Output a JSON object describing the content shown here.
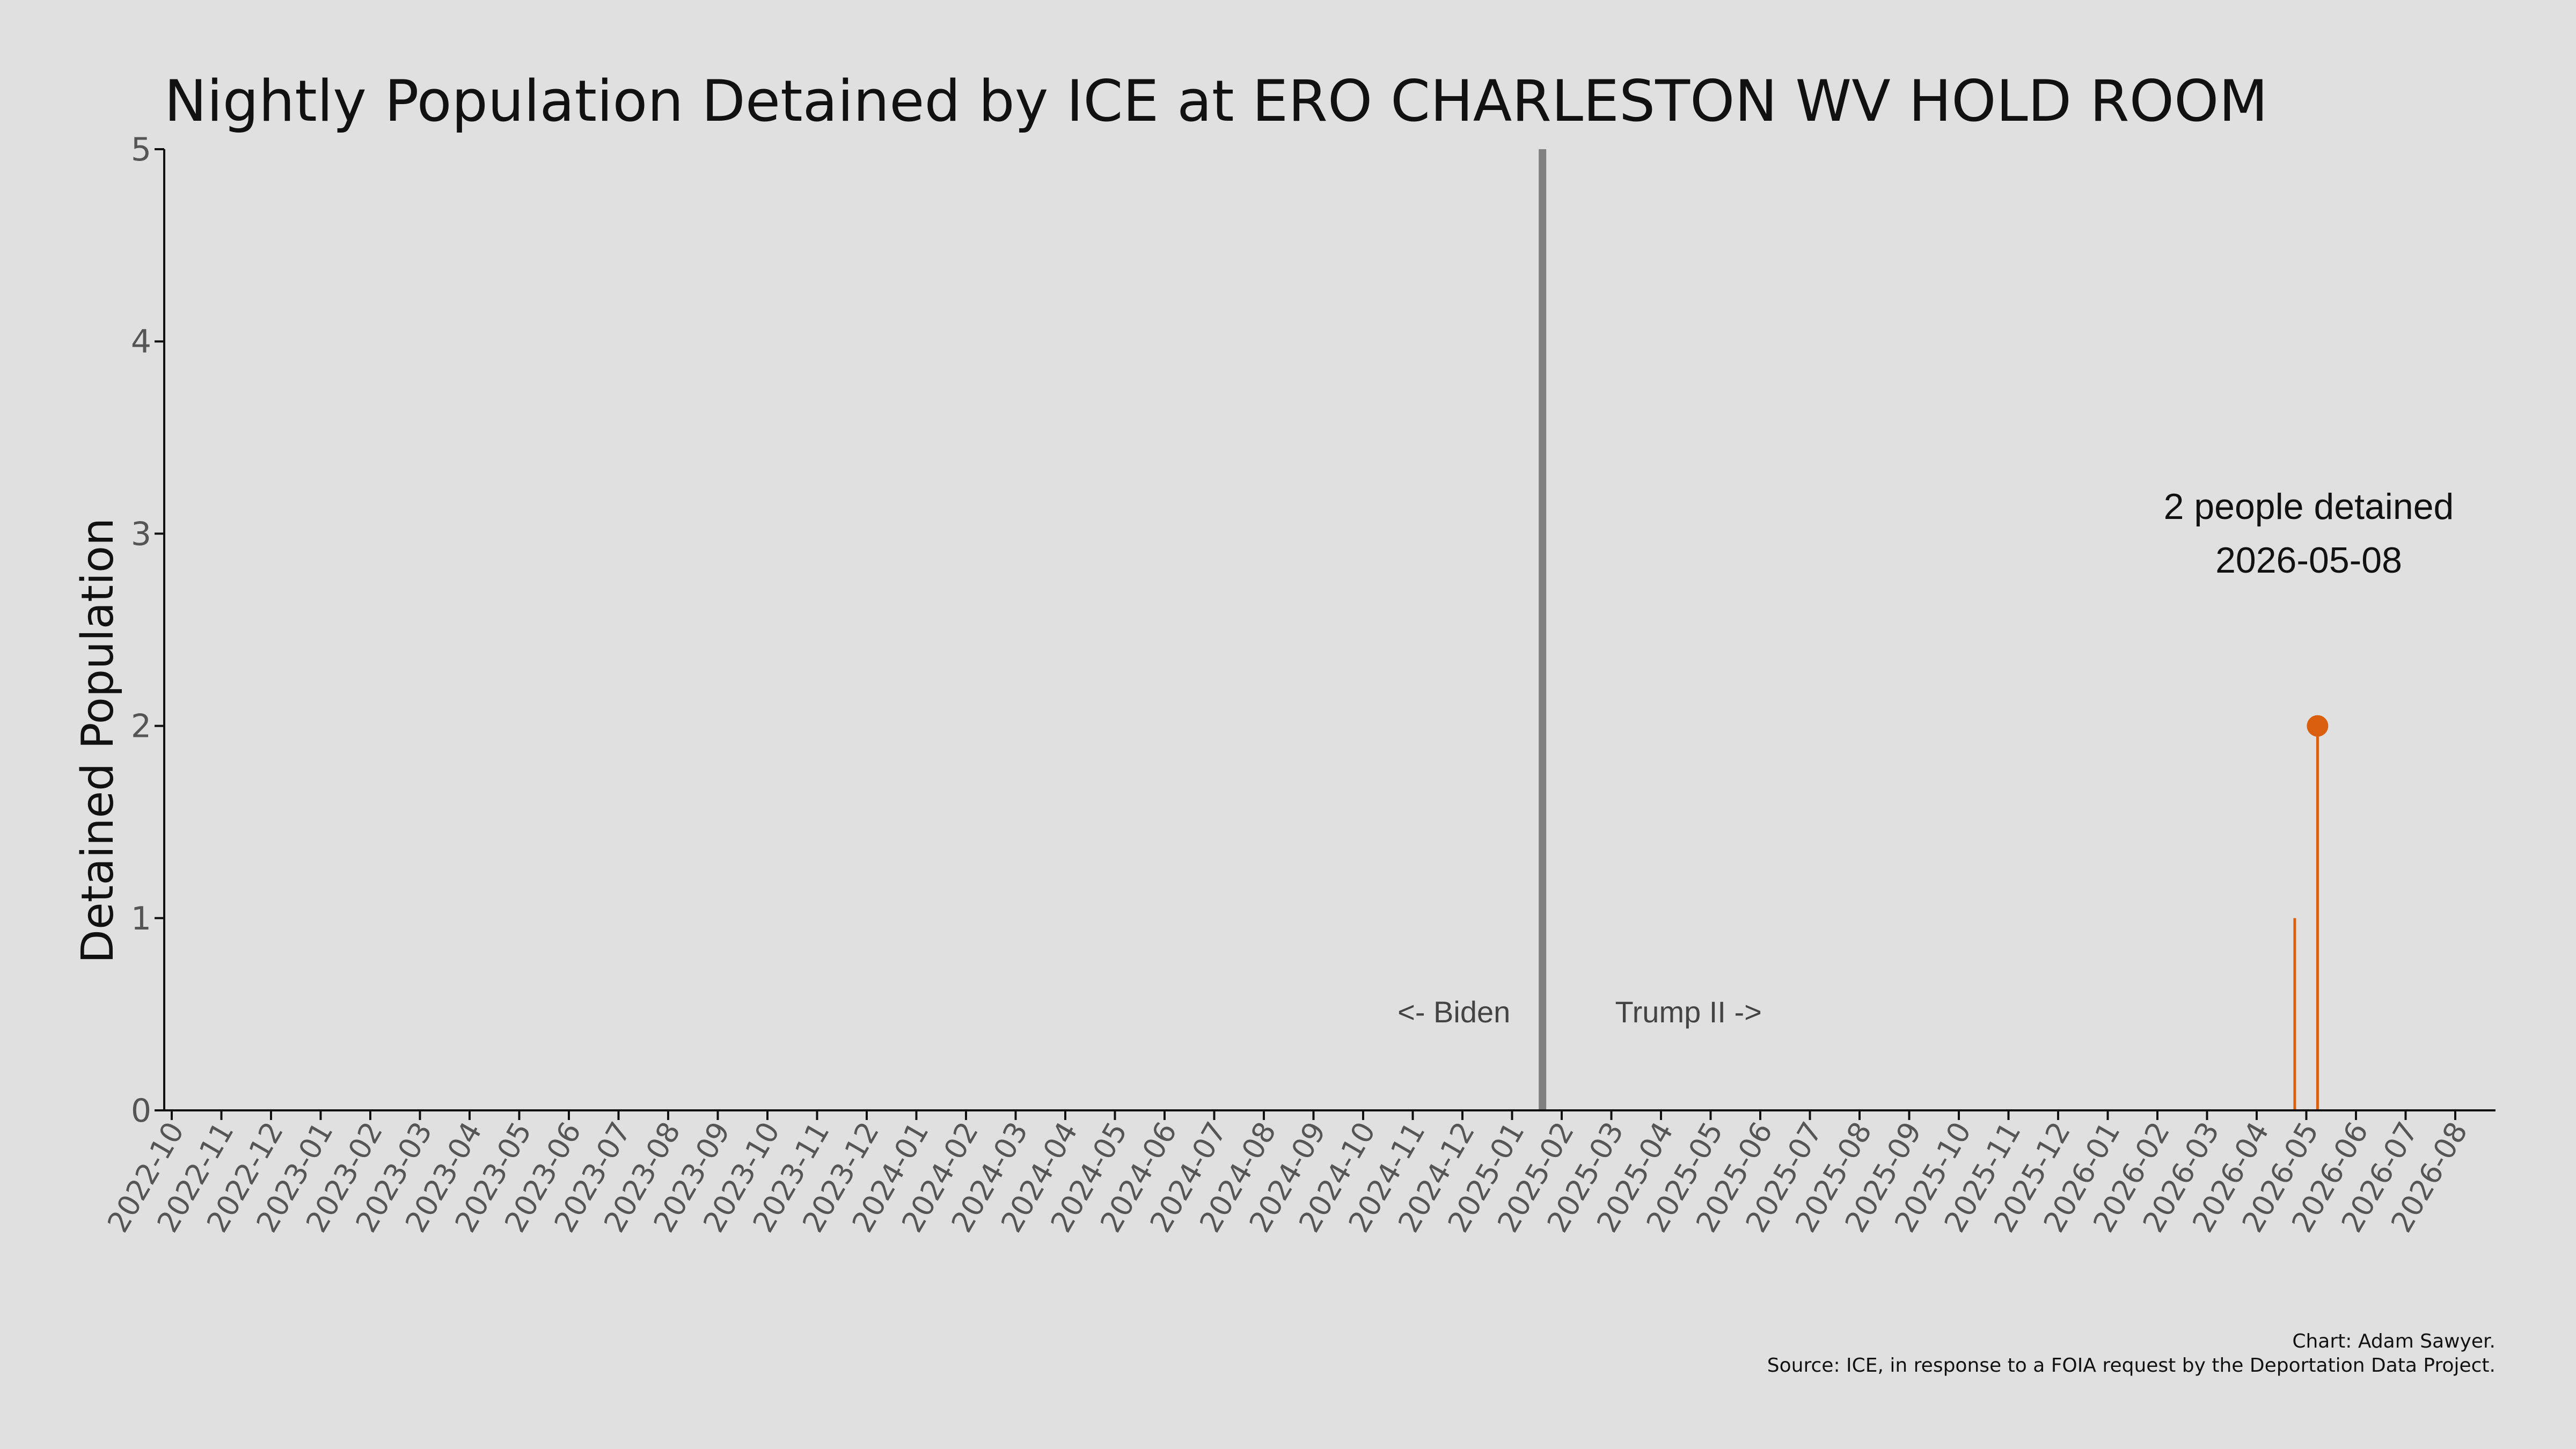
{
  "chart_data": {
    "type": "line",
    "title": "Nightly Population Detained by ICE at ERO CHARLESTON WV HOLD ROOM",
    "ylabel": "Detained Population",
    "xlabel": "",
    "ylim": [
      0,
      5
    ],
    "yticks": [
      "0",
      "1",
      "2",
      "3",
      "4",
      "5"
    ],
    "xticks": [
      "2022-10",
      "2022-11",
      "2022-12",
      "2023-01",
      "2023-02",
      "2023-03",
      "2023-04",
      "2023-05",
      "2023-06",
      "2023-07",
      "2023-08",
      "2023-09",
      "2023-10",
      "2023-11",
      "2023-12",
      "2024-01",
      "2024-02",
      "2024-03",
      "2024-04",
      "2024-05",
      "2024-06",
      "2024-07",
      "2024-08",
      "2024-09",
      "2024-10",
      "2024-11",
      "2024-12",
      "2025-01",
      "2025-02",
      "2025-03",
      "2025-04",
      "2025-05",
      "2025-06",
      "2025-07",
      "2025-08",
      "2025-09",
      "2025-10",
      "2025-11",
      "2025-12",
      "2026-01",
      "2026-02",
      "2026-03",
      "2026-04",
      "2026-05",
      "2026-06",
      "2026-07",
      "2026-08"
    ],
    "series": [
      {
        "x": [
          "2026-04-24",
          "2026-05-08"
        ],
        "values": [
          1,
          2
        ],
        "color": "#d95f0e"
      }
    ],
    "highlight": {
      "x": "2026-05-08",
      "value": 2,
      "label_line1": "2 people detained",
      "label_line2": "2026-05-08"
    },
    "divider": {
      "x": "2025-01-20",
      "color": "#808080",
      "left_label": "<- Biden",
      "right_label": "Trump II ->"
    },
    "grid": false,
    "credit_line1": "Chart: Adam Sawyer.",
    "credit_line2": "Source: ICE, in response to a FOIA request by the Deportation Data Project."
  }
}
